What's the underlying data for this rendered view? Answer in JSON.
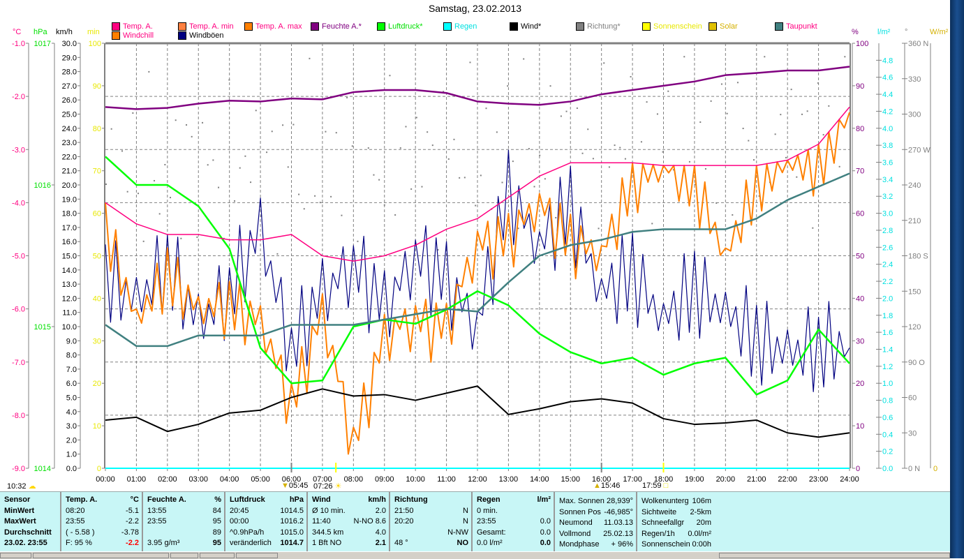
{
  "title": "Samstag, 23.02.2013",
  "legend": [
    {
      "label": "Temp. A.",
      "color": "#ff0080",
      "text_color": "#ff0080"
    },
    {
      "label": "Temp. A. min",
      "color": "#ff8040",
      "text_color": "#ff0080"
    },
    {
      "label": "Temp. A. max",
      "color": "#ff8000",
      "text_color": "#ff0080"
    },
    {
      "label": "Feuchte A.*",
      "color": "#800080",
      "text_color": "#800080"
    },
    {
      "label": "Luftdruck*",
      "color": "#00ff00",
      "text_color": "#00e000"
    },
    {
      "label": "Regen",
      "color": "#00ffff",
      "text_color": "#00e0e0"
    },
    {
      "label": "Wind*",
      "color": "#000000",
      "text_color": "#000000"
    },
    {
      "label": "Richtung*",
      "color": "#808080",
      "text_color": "#808080"
    },
    {
      "label": "Sonnenschein",
      "color": "#ffff00",
      "text_color": "#e8e800"
    },
    {
      "label": "Solar",
      "color": "#e0c000",
      "text_color": "#d4b000"
    },
    {
      "label": "Taupunkt",
      "color": "#408080",
      "text_color": "#ff0080"
    },
    {
      "label": "Windchill",
      "color": "#ff8000",
      "text_color": "#ff0080"
    },
    {
      "label": "Windböen",
      "color": "#000080",
      "text_color": "#000000"
    }
  ],
  "axis_units": {
    "temp": "°C",
    "pressure": "hPa",
    "wind": "km/h",
    "sun_min": "min",
    "humidity": "%",
    "rain": "l/m²",
    "direction": "°",
    "solar": "W/m²"
  },
  "sun_events": {
    "left_time": "10:32",
    "sunrise_twilight": "05:45",
    "sunrise": "07:26",
    "sunset": "15:46",
    "sunset_twilight": "17:59"
  },
  "chart_data": {
    "type": "line",
    "title": "Samstag, 23.02.2013",
    "x": [
      "00:00",
      "01:00",
      "02:00",
      "03:00",
      "04:00",
      "05:00",
      "06:00",
      "07:00",
      "08:00",
      "09:00",
      "10:00",
      "11:00",
      "12:00",
      "13:00",
      "14:00",
      "15:00",
      "16:00",
      "17:00",
      "18:00",
      "19:00",
      "20:00",
      "21:00",
      "22:00",
      "23:00",
      "24:00"
    ],
    "xlabel": "",
    "grid": true,
    "axes": {
      "temp_c": {
        "range": [
          -9.0,
          -1.0
        ],
        "ticks": [
          "-1.0",
          "-2.0",
          "-3.0",
          "-4.0",
          "-5.0",
          "-6.0",
          "-7.0",
          "-8.0",
          "-9.0"
        ],
        "color": "#ff0080"
      },
      "pressure_hpa": {
        "range": [
          1014,
          1017
        ],
        "ticks": [
          "1017",
          "1016",
          "1015",
          "1014"
        ],
        "color": "#00e000"
      },
      "wind_kmh": {
        "range": [
          0,
          30
        ],
        "ticks": [
          "30.0",
          "29.0",
          "28.0",
          "27.0",
          "26.0",
          "25.0",
          "24.0",
          "23.0",
          "22.0",
          "21.0",
          "20.0",
          "19.0",
          "18.0",
          "17.0",
          "16.0",
          "15.0",
          "14.0",
          "13.0",
          "12.0",
          "11.0",
          "10.0",
          "9.0",
          "8.0",
          "7.0",
          "6.0",
          "5.0",
          "4.0",
          "3.0",
          "2.0",
          "1.0",
          "0.0"
        ],
        "color": "#000000"
      },
      "sun_min": {
        "range": [
          0,
          100
        ],
        "ticks": [
          "100",
          "90",
          "80",
          "70",
          "60",
          "50",
          "40",
          "30",
          "20",
          "10",
          "0"
        ],
        "color": "#e8e800"
      },
      "humidity_pct": {
        "range": [
          0,
          100
        ],
        "ticks": [
          "100",
          "90",
          "80",
          "70",
          "60",
          "50",
          "40",
          "30",
          "20",
          "10",
          "0"
        ],
        "color": "#800080"
      },
      "rain_lm2": {
        "range": [
          0,
          5.0
        ],
        "ticks": [
          "4.8",
          "4.6",
          "4.4",
          "4.2",
          "4.0",
          "3.8",
          "3.6",
          "3.4",
          "3.2",
          "3.0",
          "2.8",
          "2.6",
          "2.4",
          "2.2",
          "2.0",
          "1.8",
          "1.6",
          "1.4",
          "1.2",
          "1.0",
          "0.8",
          "0.6",
          "0.4",
          "0.2",
          "0.0"
        ],
        "color": "#00e0e0"
      },
      "direction_deg": {
        "range": [
          0,
          360
        ],
        "ticks": [
          "360 N",
          "330",
          "300",
          "270 W",
          "240",
          "210",
          "180 S",
          "150",
          "120",
          "90 O",
          "60",
          "30",
          "0  N"
        ],
        "color": "#808080"
      },
      "solar_wm2": {
        "range": [
          0,
          0
        ],
        "ticks": [
          "0"
        ],
        "color": "#d4b000"
      }
    },
    "series": [
      {
        "name": "Feuchte A.*",
        "axis": "humidity_pct",
        "color": "#800080",
        "values": [
          85.0,
          84.5,
          84.8,
          85.8,
          86.5,
          86.3,
          87.0,
          86.8,
          88.5,
          89.0,
          89.0,
          88.3,
          86.3,
          85.8,
          85.5,
          86.3,
          88.0,
          89.0,
          90.0,
          91.0,
          92.5,
          93.0,
          93.6,
          93.6,
          94.5
        ]
      },
      {
        "name": "Luftdruck*",
        "axis": "pressure_hpa",
        "color": "#00ff00",
        "values": [
          1016.2,
          1016.0,
          1016.0,
          1015.85,
          1015.55,
          1014.85,
          1014.6,
          1014.62,
          1015.0,
          1015.05,
          1015.02,
          1015.12,
          1015.25,
          1015.15,
          1014.95,
          1014.82,
          1014.74,
          1014.78,
          1014.66,
          1014.74,
          1014.78,
          1014.52,
          1014.62,
          1014.98,
          1014.74
        ]
      },
      {
        "name": "Temp. A.",
        "axis": "temp_c",
        "color": "#ff0080",
        "values": [
          -4.0,
          -4.4,
          -4.6,
          -4.6,
          -4.7,
          -4.7,
          -4.6,
          -5.0,
          -5.1,
          -5.0,
          -4.8,
          -4.5,
          -4.3,
          -3.9,
          -3.5,
          -3.25,
          -3.25,
          -3.25,
          -3.3,
          -3.3,
          -3.3,
          -3.3,
          -3.2,
          -2.9,
          -2.2
        ]
      },
      {
        "name": "Taupunkt",
        "axis": "temp_c",
        "color": "#408080",
        "values": [
          -6.3,
          -6.7,
          -6.7,
          -6.5,
          -6.5,
          -6.5,
          -6.3,
          -6.3,
          -6.3,
          -6.2,
          -6.1,
          -6.0,
          -6.05,
          -5.5,
          -5.0,
          -4.8,
          -4.7,
          -4.55,
          -4.5,
          -4.5,
          -4.5,
          -4.3,
          -3.95,
          -3.7,
          -3.45
        ]
      },
      {
        "name": "Wind*",
        "axis": "wind_kmh",
        "color": "#000000",
        "values": [
          3.4,
          3.6,
          2.6,
          3.1,
          3.9,
          4.1,
          5.0,
          5.6,
          5.1,
          5.2,
          4.8,
          5.3,
          5.8,
          3.8,
          4.2,
          4.7,
          4.9,
          4.6,
          3.5,
          3.1,
          3.2,
          3.4,
          2.5,
          2.2,
          2.5
        ]
      },
      {
        "name": "Windböen",
        "axis": "wind_kmh",
        "color": "#000080",
        "values": [
          14.0,
          11.5,
          15.0,
          10.0,
          13.0,
          16.5,
          9.0,
          12.0,
          15.0,
          11.0,
          15.5,
          13.0,
          10.5,
          19.5,
          16.0,
          18.5,
          12.5,
          14.0,
          10.5,
          13.0,
          11.0,
          9.5,
          8.0,
          9.0,
          8.5
        ]
      },
      {
        "name": "Windchill",
        "axis": "temp_c",
        "color": "#ff8000",
        "values": [
          -4.1,
          -6.2,
          -5.0,
          -6.0,
          -5.6,
          -6.2,
          -7.5,
          -6.0,
          -8.3,
          -6.4,
          -6.0,
          -6.2,
          -4.6,
          -4.5,
          -3.9,
          -4.5,
          -4.9,
          -3.3,
          -3.25,
          -3.3,
          -5.0,
          -3.3,
          -3.2,
          -2.95,
          -2.3
        ]
      },
      {
        "name": "Regen",
        "axis": "rain_lm2",
        "color": "#00ffff",
        "values": [
          0,
          0,
          0,
          0,
          0,
          0,
          0,
          0,
          0,
          0,
          0,
          0,
          0,
          0,
          0,
          0,
          0,
          0,
          0,
          0,
          0,
          0,
          0,
          0,
          0
        ]
      }
    ],
    "legend_position": "top"
  },
  "table": {
    "sensor": {
      "header": "Sensor",
      "rows": [
        "MinWert",
        "MaxWert",
        "Durchschnitt",
        "23.02. 23:55"
      ]
    },
    "temp": {
      "header": "Temp. A.",
      "unit": "°C",
      "rows": [
        [
          "08:20",
          "-5.1"
        ],
        [
          "23:55",
          "-2.2"
        ],
        [
          "( - 5.58 )",
          "-3.78"
        ],
        [
          "F: 95 %",
          "-2.2"
        ]
      ]
    },
    "humidity": {
      "header": "Feuchte A.",
      "unit": "%",
      "rows": [
        [
          "13:55",
          "84"
        ],
        [
          "23:55",
          "95"
        ],
        [
          "",
          "89"
        ],
        [
          "3.95 g/m³",
          "95"
        ]
      ]
    },
    "pressure": {
      "header": "Luftdruck",
      "unit": "hPa",
      "rows": [
        [
          "20:45",
          "1014.5"
        ],
        [
          "00:00",
          "1016.2"
        ],
        [
          "^0.9hPa/h",
          "1015.0"
        ],
        [
          "veränderlich",
          "1014.7"
        ]
      ]
    },
    "wind": {
      "header": "Wind",
      "unit": "km/h",
      "rows": [
        [
          "Ø 10 min.",
          "2.0"
        ],
        [
          "11:40",
          "N-NO 8.6"
        ],
        [
          "344.5 km",
          "4.0"
        ],
        [
          "1 Bft NO",
          "2.1"
        ]
      ]
    },
    "direction": {
      "header": "Richtung",
      "unit": "",
      "rows": [
        [
          "21:50",
          "N"
        ],
        [
          "20:20",
          "N"
        ],
        [
          "",
          "N-NW"
        ],
        [
          "48 °",
          "NO"
        ]
      ]
    },
    "rain": {
      "header": "Regen",
      "unit": "l/m²",
      "rows": [
        [
          "0 min.",
          ""
        ],
        [
          "23:55",
          "0.0"
        ],
        [
          "Gesamt:",
          "0.0"
        ],
        [
          "0.0 l/m²",
          "0.0"
        ]
      ]
    },
    "astro": {
      "rows": [
        [
          "Max. Sonnen",
          "28,939°"
        ],
        [
          "Sonnen Pos",
          "-46,985°"
        ],
        [
          "Neumond",
          "11.03.13"
        ],
        [
          "Vollmond",
          "25.02.13"
        ],
        [
          "Mondphase",
          "+ 96%"
        ]
      ]
    },
    "misc": {
      "rows": [
        [
          "Wolkenunterg",
          "106m"
        ],
        [
          "Sichtweite",
          "2-5km"
        ],
        [
          "Schneefallgr",
          "20m"
        ],
        [
          "Regen/1h",
          "0.0l/m²"
        ],
        [
          "Sonnenschein",
          "0:00h"
        ]
      ]
    }
  }
}
